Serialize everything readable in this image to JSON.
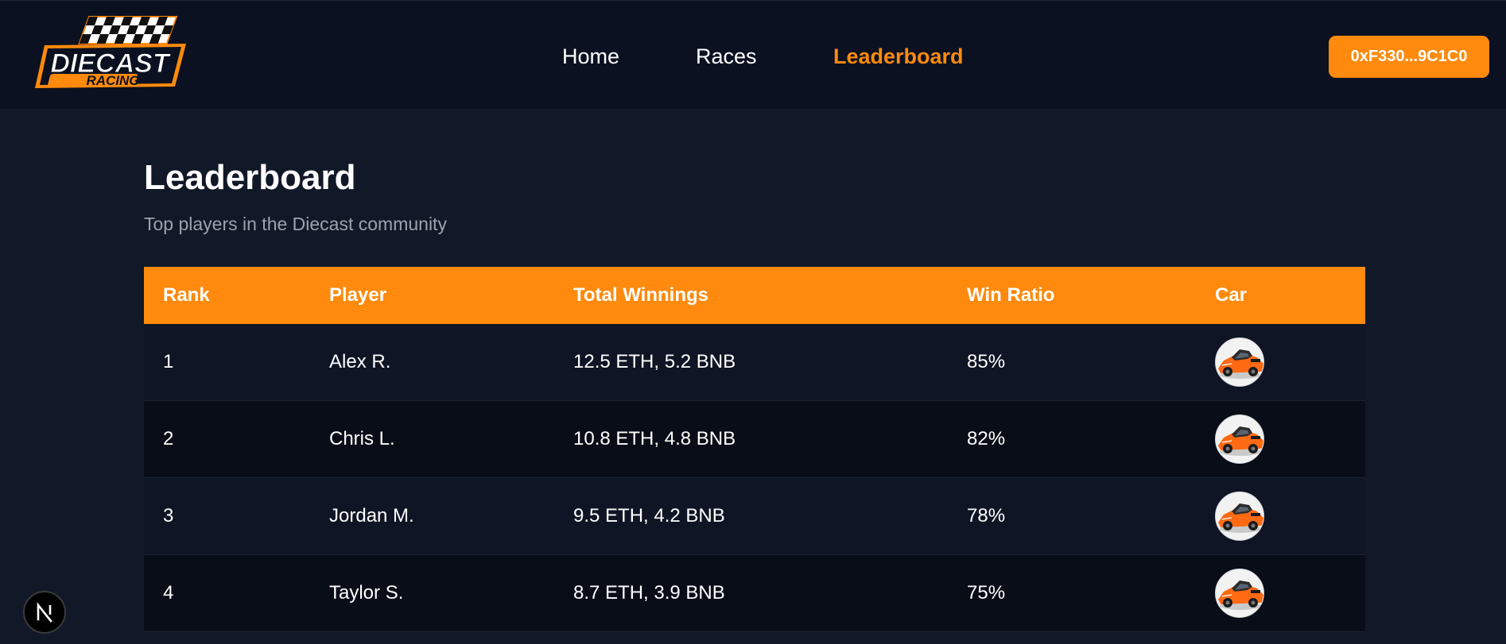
{
  "header": {
    "logo": {
      "line1": "DIECAST",
      "line2": "RACING"
    },
    "nav": [
      {
        "label": "Home",
        "active": false
      },
      {
        "label": "Races",
        "active": false
      },
      {
        "label": "Leaderboard",
        "active": true
      }
    ],
    "wallet_label": "0xF330...9C1C0"
  },
  "page": {
    "title": "Leaderboard",
    "subtitle": "Top players in the Diecast community"
  },
  "table": {
    "columns": [
      "Rank",
      "Player",
      "Total Winnings",
      "Win Ratio",
      "Car"
    ],
    "rows": [
      {
        "rank": "1",
        "player": "Alex R.",
        "winnings": "12.5 ETH, 5.2 BNB",
        "ratio": "85%"
      },
      {
        "rank": "2",
        "player": "Chris L.",
        "winnings": "10.8 ETH, 4.8 BNB",
        "ratio": "82%"
      },
      {
        "rank": "3",
        "player": "Jordan M.",
        "winnings": "9.5 ETH, 4.2 BNB",
        "ratio": "78%"
      },
      {
        "rank": "4",
        "player": "Taylor S.",
        "winnings": "8.7 ETH, 3.9 BNB",
        "ratio": "75%"
      }
    ]
  },
  "colors": {
    "accent": "#ff8a0d",
    "background": "#111827",
    "header_bg": "#0b1120"
  },
  "icons": {
    "car": "orange-race-car-icon",
    "framework_badge": "next-js-n-icon"
  }
}
